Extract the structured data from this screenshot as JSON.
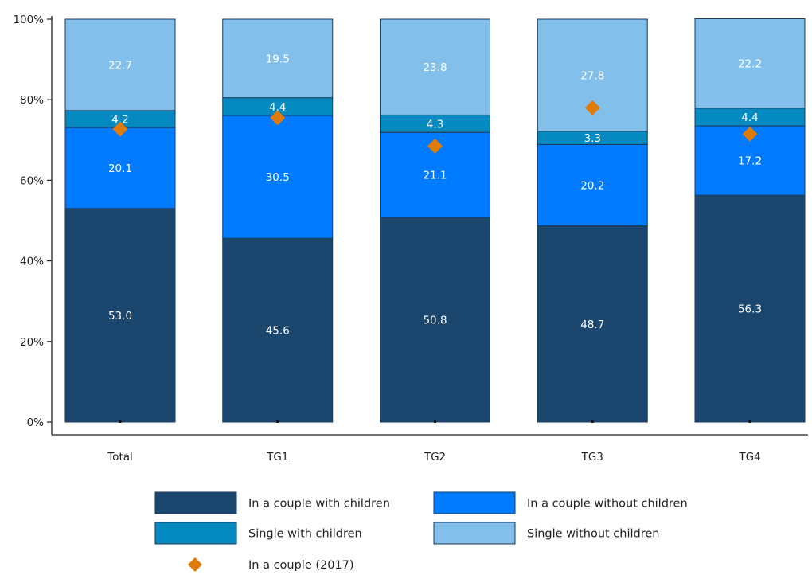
{
  "chart_data": {
    "type": "bar",
    "stacked": true,
    "categories": [
      "Total",
      "TG1",
      "TG2",
      "TG3",
      "TG4"
    ],
    "y_ticks": [
      "0%",
      "20%",
      "40%",
      "60%",
      "80%",
      "100%"
    ],
    "ylim": [
      0,
      100
    ],
    "grid": false,
    "legend_position": "bottom",
    "series": [
      {
        "name": "In a couple with children",
        "color": "#1b466e",
        "values": [
          53.0,
          45.6,
          50.8,
          48.7,
          56.3
        ],
        "labels": [
          "53.0",
          "45.6",
          "50.8",
          "48.7",
          "56.3"
        ]
      },
      {
        "name": "In a couple without children",
        "color": "#007bff",
        "values": [
          20.1,
          30.5,
          21.1,
          20.2,
          17.2
        ],
        "labels": [
          "20.1",
          "30.5",
          "21.1",
          "20.2",
          "17.2"
        ]
      },
      {
        "name": "Single with children",
        "color": "#048ac0",
        "values": [
          4.2,
          4.4,
          4.3,
          3.3,
          4.4
        ],
        "labels": [
          "4.2",
          "4.4",
          "4.3",
          "3.3",
          "4.4"
        ]
      },
      {
        "name": "Single without children",
        "color": "#82bfea",
        "values": [
          22.7,
          19.5,
          23.8,
          27.8,
          22.2
        ],
        "labels": [
          "22.7",
          "19.5",
          "23.8",
          "27.8",
          "22.2"
        ]
      }
    ],
    "markers": {
      "name": "In a couple (2017)",
      "color": "#e07b0a",
      "shape": "diamond",
      "values": [
        72.7,
        75.5,
        68.5,
        78.0,
        71.5
      ]
    }
  }
}
